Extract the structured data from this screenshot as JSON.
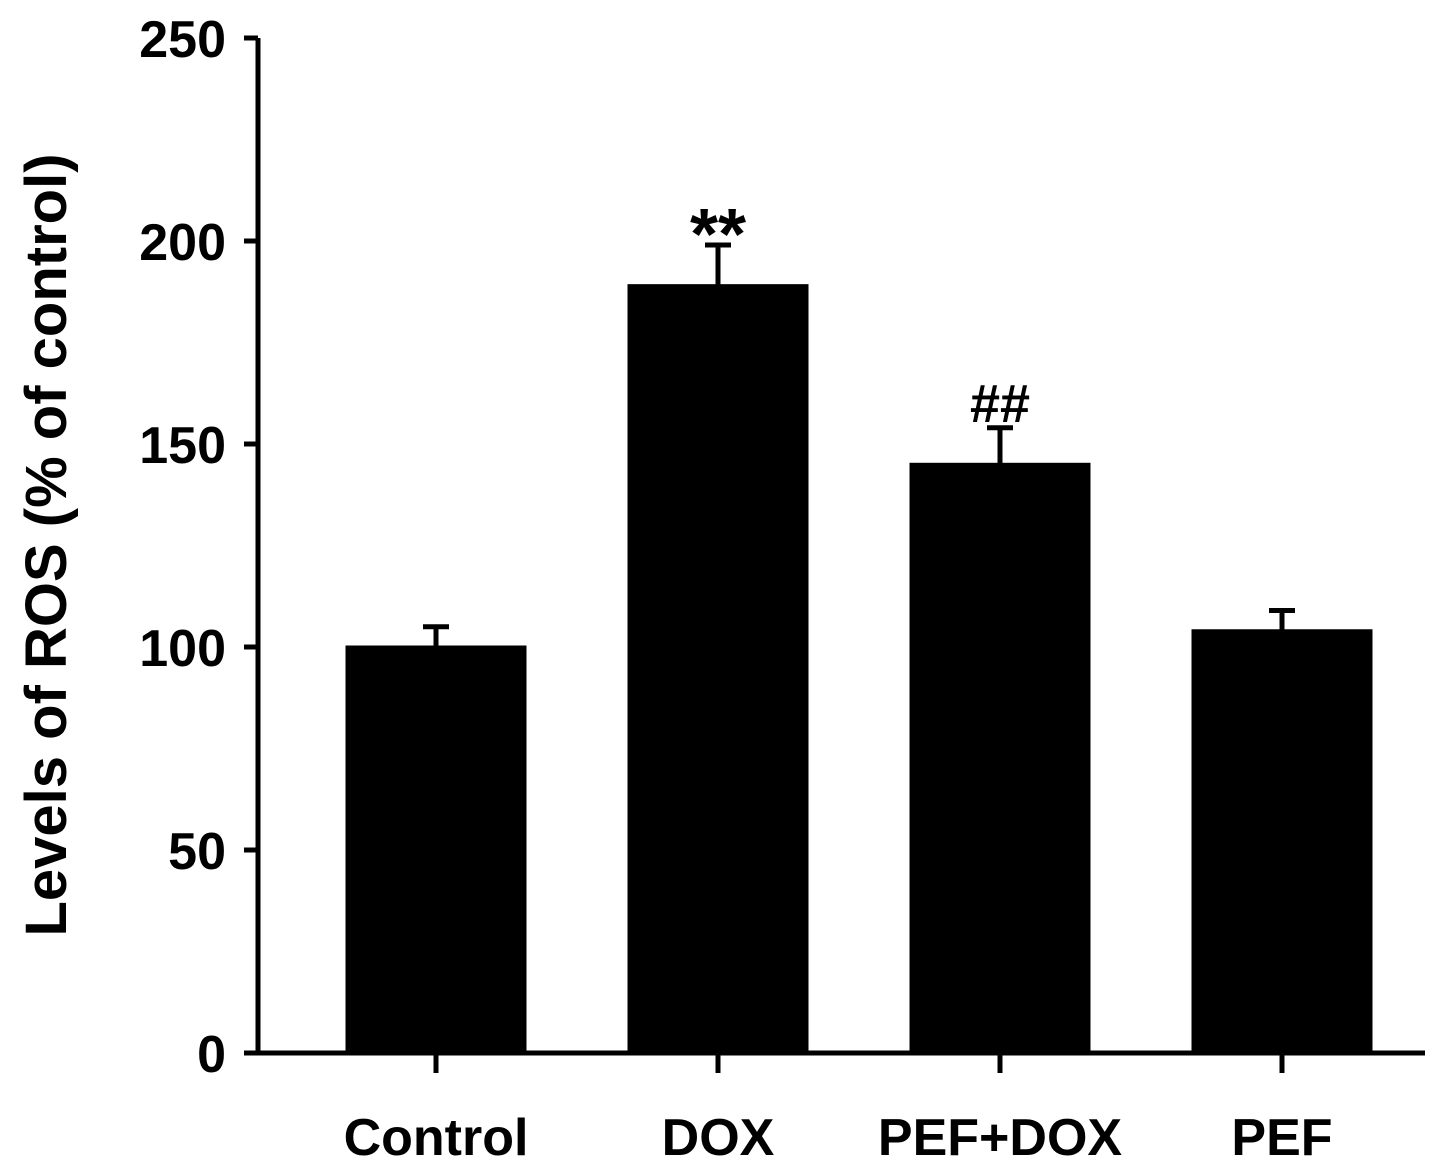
{
  "chart_data": {
    "type": "bar",
    "title": "",
    "xlabel": "",
    "ylabel": "Levels of ROS (% of control)",
    "ylim": [
      0,
      250
    ],
    "yticks": [
      0,
      50,
      100,
      150,
      200,
      250
    ],
    "categories": [
      "Control",
      "DOX",
      "PEF+DOX",
      "PEF"
    ],
    "values": [
      100,
      189,
      145,
      104
    ],
    "errors": [
      5,
      10,
      9,
      5
    ],
    "annotations": [
      "",
      "**",
      "##",
      ""
    ],
    "bar_color": "#000000",
    "grid": false
  }
}
